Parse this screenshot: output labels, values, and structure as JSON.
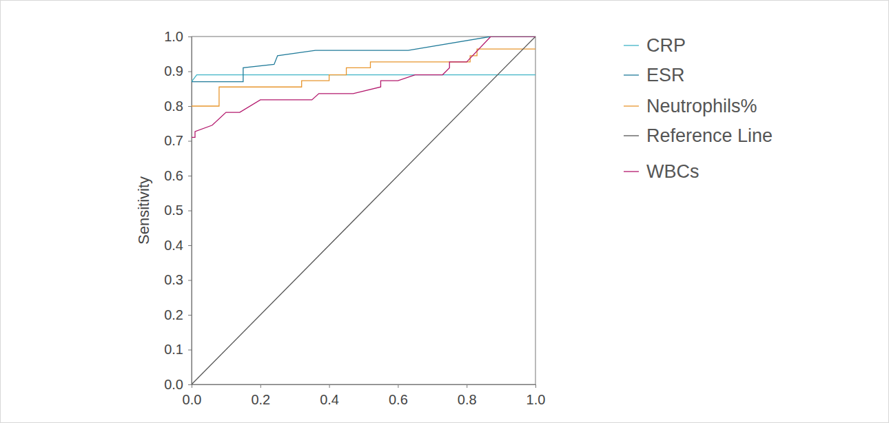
{
  "chart_data": {
    "type": "line",
    "y_label": "Sensitivity",
    "xlim": [
      0,
      1
    ],
    "ylim": [
      0,
      1
    ],
    "xticks": [
      {
        "value": 0,
        "label": "0.0"
      },
      0.2,
      0.4,
      0.6,
      0.8,
      {
        "value": 1,
        "label": "1.0"
      }
    ],
    "yticks": [
      {
        "value": 0,
        "label": "0.0"
      },
      0.1,
      0.2,
      0.3,
      0.4,
      0.5,
      0.6,
      0.7,
      0.8,
      0.9,
      {
        "value": 1,
        "label": "1.0"
      }
    ],
    "grid": false,
    "legend": "right",
    "series": [
      {
        "name": "CRP",
        "color": "#3eb4c6",
        "x": [
          0,
          0.015,
          1.0
        ],
        "values": [
          0.87,
          0.89,
          0.89
        ]
      },
      {
        "name": "ESR",
        "color": "#1f7a99",
        "x": [
          0,
          0.15,
          0.15,
          0.24,
          0.25,
          0.36,
          0.63,
          0.87,
          1.0
        ],
        "values": [
          0.87,
          0.87,
          0.91,
          0.92,
          0.945,
          0.96,
          0.96,
          1.0,
          1.0
        ]
      },
      {
        "name": "Neutrophils%",
        "color": "#e8962e",
        "x": [
          0,
          0.08,
          0.08,
          0.32,
          0.32,
          0.4,
          0.4,
          0.45,
          0.45,
          0.52,
          0.52,
          0.81,
          0.81,
          0.83,
          0.83,
          1.0
        ],
        "values": [
          0.8,
          0.8,
          0.855,
          0.855,
          0.873,
          0.873,
          0.89,
          0.89,
          0.91,
          0.91,
          0.927,
          0.927,
          0.945,
          0.945,
          0.964,
          0.964
        ]
      },
      {
        "name": "Reference Line",
        "color": "#555555",
        "x": [
          0,
          1
        ],
        "values": [
          0,
          1
        ]
      },
      {
        "name": "WBCs",
        "color": "#b3186c",
        "x": [
          0,
          0.01,
          0.01,
          0.06,
          0.1,
          0.14,
          0.2,
          0.35,
          0.37,
          0.47,
          0.55,
          0.55,
          0.6,
          0.65,
          0.73,
          0.75,
          0.75,
          0.8,
          0.87,
          1.0
        ],
        "values": [
          0.71,
          0.71,
          0.727,
          0.745,
          0.782,
          0.782,
          0.818,
          0.818,
          0.836,
          0.836,
          0.855,
          0.873,
          0.873,
          0.89,
          0.89,
          0.91,
          0.927,
          0.927,
          1.0,
          1.0
        ]
      }
    ]
  }
}
